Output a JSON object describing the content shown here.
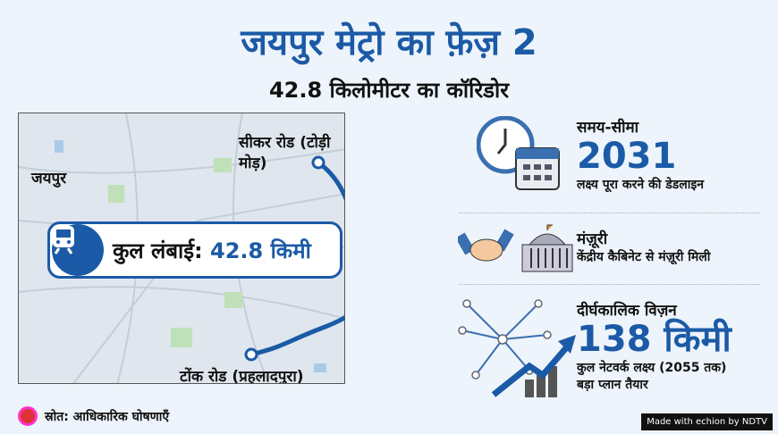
{
  "title": "जयपुर मेट्रो का फ़ेज़ 2",
  "subtitle": "42.8 किलोमीटर का कॉरिडोर",
  "map": {
    "city": "जयपुर",
    "start": "सीकर रोड (टोड़ी मोड़)",
    "end": "टोंक रोड (प्रहलादपुरा)",
    "callout_label": "कुल लंबाई:",
    "callout_value": "42.8 किमी"
  },
  "deadline": {
    "heading": "समय-सीमा",
    "value": "2031",
    "desc": "लक्ष्य पूरा करने की डेडलाइन"
  },
  "approval": {
    "heading": "मंज़ूरी",
    "desc": "केंद्रीय कैबिनेट से मंज़ूरी मिली"
  },
  "vision": {
    "heading": "दीर्घकालिक विज़न",
    "value": "138 किमी",
    "desc1": "कुल नेटवर्क लक्ष्य (2055 तक)",
    "desc2": "बड़ा प्लान तैयार"
  },
  "source": "स्रोत: आधिकारिक घोषणाएँ",
  "credit": "Made with echion by NDTV",
  "colors": {
    "accent": "#1b5aa6",
    "background": "#eef4fb"
  }
}
